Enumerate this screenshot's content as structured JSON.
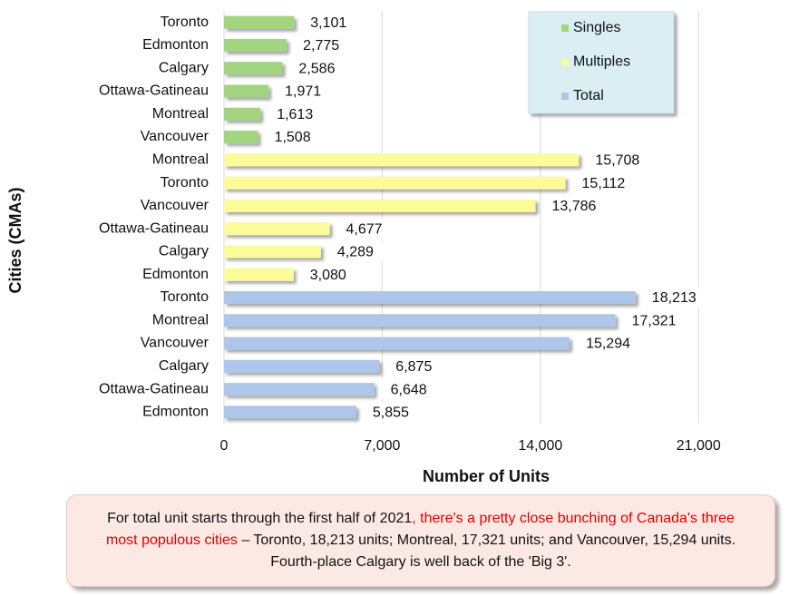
{
  "chart_data": {
    "type": "hbar",
    "x_label": "Number of Units",
    "y_label": "Cities (CMAs)",
    "xlim": [
      0,
      24000
    ],
    "xticks": [
      0,
      {
        "value": 7000,
        "label": "7,000"
      },
      {
        "value": 14000,
        "label": "14,000"
      },
      {
        "value": 21000,
        "label": "21,000"
      }
    ],
    "grid": true,
    "legend": "top-right",
    "series": [
      {
        "name": "Singles",
        "color": "#a3d47f",
        "categories": [
          "Toronto",
          "Edmonton",
          "Calgary",
          "Ottawa-Gatineau",
          "Montreal",
          "Vancouver"
        ],
        "values": [
          3101,
          2775,
          2586,
          1971,
          1613,
          1508
        ],
        "value_labels": [
          "3,101",
          "2,775",
          "2,586",
          "1,971",
          "1,613",
          "1,508"
        ]
      },
      {
        "name": "Multiples",
        "color": "#fbfb9a",
        "categories": [
          "Montreal",
          "Toronto",
          "Vancouver",
          "Ottawa-Gatineau",
          "Calgary",
          "Edmonton"
        ],
        "values": [
          15708,
          15112,
          13786,
          4677,
          4289,
          3080
        ],
        "value_labels": [
          "15,708",
          "15,112",
          "13,786",
          "4,677",
          "4,289",
          "3,080"
        ]
      },
      {
        "name": "Total",
        "color": "#adc6e9",
        "categories": [
          "Toronto",
          "Montreal",
          "Vancouver",
          "Calgary",
          "Ottawa-Gatineau",
          "Edmonton"
        ],
        "values": [
          18213,
          17321,
          15294,
          6875,
          6648,
          5855
        ],
        "value_labels": [
          "18,213",
          "17,321",
          "15,294",
          "6,875",
          "6,648",
          "5,855"
        ]
      }
    ],
    "annotation": [
      "For total unit starts through the first half of 2021",
      ", there's a pretty close bunching of Canada's three most populous cities",
      " – Toronto, 18,213 units; Montreal, 17,321 units; and Vancouver, 15,294 units. Fourth-place Calgary is well back of the 'Big 3'."
    ]
  }
}
